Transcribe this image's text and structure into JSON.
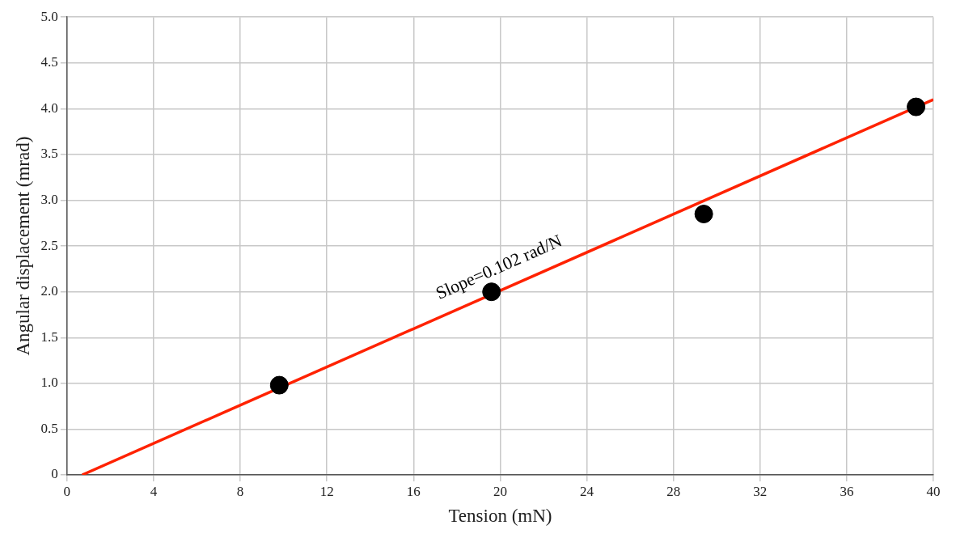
{
  "chart_data": {
    "type": "scatter",
    "xlabel": "Tension (mN)",
    "ylabel": "Angular displacement (mrad)",
    "xlim": [
      0,
      40
    ],
    "xticks": [
      0,
      4,
      8,
      12,
      16,
      20,
      24,
      28,
      32,
      36,
      40
    ],
    "ylim": [
      0,
      5
    ],
    "yticks": [
      0,
      0.5,
      {
        "value": 1,
        "label": "1.0"
      },
      1.5,
      {
        "value": 2,
        "label": "2.0"
      },
      2.5,
      {
        "value": 3,
        "label": "3.0"
      },
      3.5,
      {
        "value": 4,
        "label": "4.0"
      },
      4.5,
      {
        "value": 5,
        "label": "5.0"
      }
    ],
    "grid": true,
    "legend": false,
    "marker": "circle",
    "series": [
      {
        "color": "#000000",
        "x": [
          9.8,
          19.6,
          29.4,
          39.2
        ],
        "values": [
          0.98,
          2.0,
          2.85,
          4.02
        ]
      },
      {
        "type": "line",
        "color": "#ff2200",
        "x": [
          0.7,
          40
        ],
        "values": [
          0,
          4.1
        ],
        "marker": "none",
        "line_style": "solid"
      }
    ],
    "annotations": [
      "Slope=0.102 rad/N"
    ]
  }
}
